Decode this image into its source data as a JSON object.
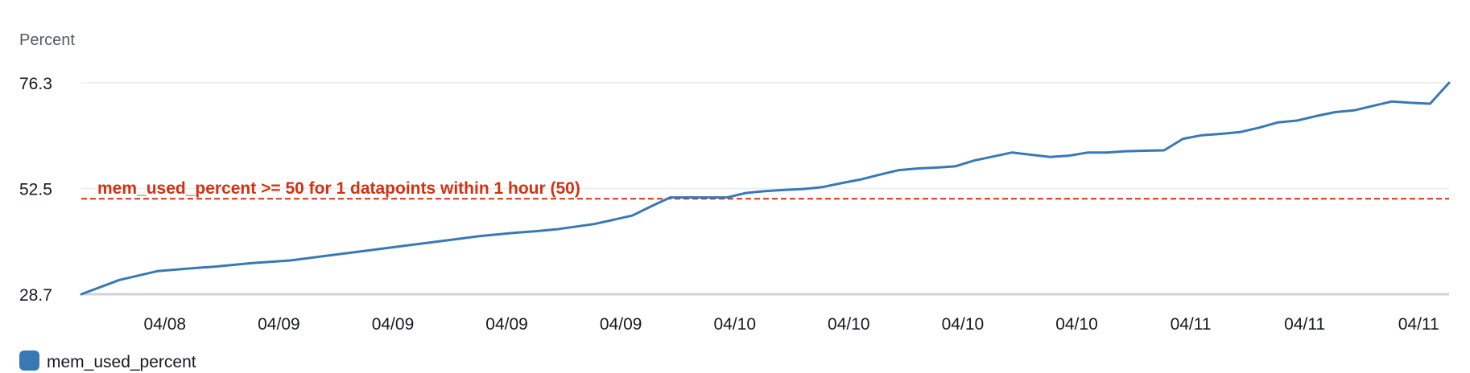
{
  "chart_data": {
    "type": "line",
    "ylabel": "Percent",
    "ylim": [
      28.7,
      76.3
    ],
    "y_ticks": [
      "76.3",
      "52.5",
      "28.7"
    ],
    "y_tick_values": [
      76.3,
      52.5,
      28.7
    ],
    "grid": true,
    "xlim": [
      0,
      36
    ],
    "x_tick_labels": [
      "04/08",
      "04/09",
      "04/09",
      "04/09",
      "04/09",
      "04/10",
      "04/10",
      "04/10",
      "04/10",
      "04/11",
      "04/11",
      "04/11"
    ],
    "x_tick_positions": [
      2.2,
      5.2,
      8.2,
      11.2,
      14.2,
      17.2,
      20.2,
      23.2,
      26.2,
      29.2,
      32.2,
      35.2
    ],
    "series": [
      {
        "name": "mem_used_percent",
        "color": "#3a78b5",
        "x": [
          0,
          1,
          2,
          3,
          3.5,
          4.5,
          5.5,
          6.5,
          7.5,
          8.5,
          9.5,
          10.5,
          11.5,
          12,
          12.5,
          13.5,
          14.5,
          15,
          15.5,
          16,
          16.5,
          17,
          17.5,
          18,
          18.5,
          19,
          19.5,
          20,
          20.5,
          21,
          21.5,
          22,
          22.5,
          23,
          23.5,
          24,
          24.5,
          25,
          25.5,
          26,
          26.5,
          27,
          27.5,
          28,
          28.5,
          29,
          29.5,
          30,
          30.5,
          31,
          31.5,
          32,
          32.5,
          33,
          33.5,
          34,
          34.5,
          35,
          35.5,
          36
        ],
        "y": [
          28.7,
          31.9,
          33.9,
          34.6,
          34.9,
          35.7,
          36.3,
          37.4,
          38.5,
          39.6,
          40.7,
          41.8,
          42.6,
          42.9,
          43.3,
          44.5,
          46.4,
          48.5,
          50.5,
          50.5,
          50.5,
          50.5,
          51.5,
          51.9,
          52.2,
          52.4,
          52.8,
          53.7,
          54.5,
          55.6,
          56.6,
          57.0,
          57.2,
          57.5,
          58.8,
          59.7,
          60.6,
          60.1,
          59.6,
          59.9,
          60.6,
          60.6,
          60.9,
          61.0,
          61.1,
          63.7,
          64.5,
          64.8,
          65.2,
          66.2,
          67.4,
          67.8,
          68.8,
          69.7,
          70.1,
          71.1,
          72.1,
          71.8,
          71.6,
          76.3
        ]
      }
    ],
    "threshold": {
      "label": "mem_used_percent >= 50 for 1 datapoints within 1 hour (50)",
      "value": 50.2,
      "color": "#d13212",
      "style": "dashed"
    },
    "legend": {
      "position": "bottom-left",
      "items": [
        {
          "label": "mem_used_percent",
          "color": "#3a78b5"
        }
      ]
    }
  }
}
